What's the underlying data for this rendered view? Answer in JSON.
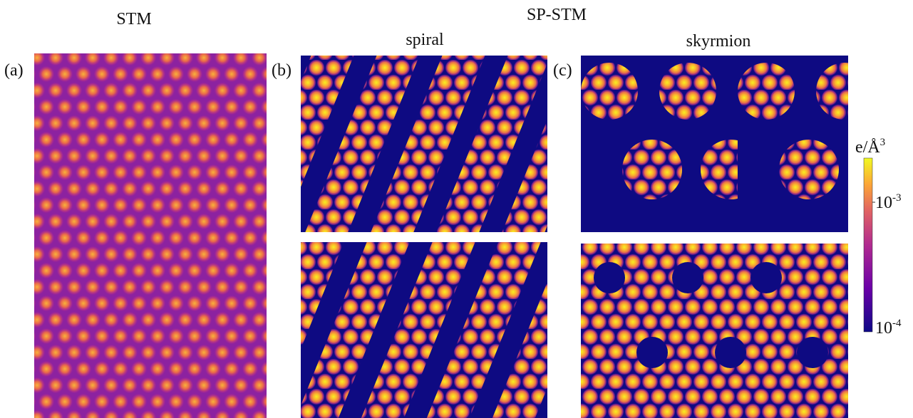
{
  "header": {
    "stm": "STM",
    "sp_stm": "SP-STM",
    "spiral": "spiral",
    "skyrmion": "skyrmion"
  },
  "panels": [
    {
      "label": "(a)"
    },
    {
      "label": "(b)"
    },
    {
      "label": "(c)"
    }
  ],
  "colorbar": {
    "unit": "e/Å",
    "unit_exponent": "3",
    "ticks": [
      {
        "base": "10",
        "exponent": "-3"
      },
      {
        "base": "10",
        "exponent": "-4"
      }
    ]
  }
}
